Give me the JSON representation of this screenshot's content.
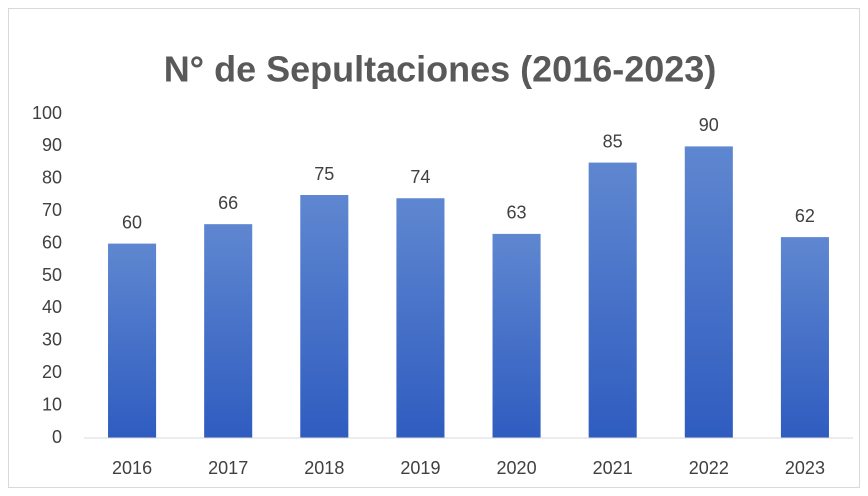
{
  "chart_data": {
    "type": "bar",
    "title": "N° de Sepultaciones (2016-2023)",
    "categories": [
      "2016",
      "2017",
      "2018",
      "2019",
      "2020",
      "2021",
      "2022",
      "2023"
    ],
    "values": [
      60,
      66,
      75,
      74,
      63,
      85,
      90,
      62
    ],
    "color": "#4472c4",
    "ylim": [
      0,
      100
    ],
    "yticks": [
      0,
      10,
      20,
      30,
      40,
      50,
      60,
      70,
      80,
      90,
      100
    ],
    "grid": false,
    "data_labels": true
  }
}
